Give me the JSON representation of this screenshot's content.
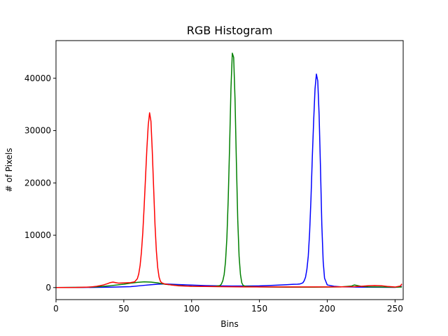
{
  "chart_data": {
    "type": "line",
    "title": "RGB Histogram",
    "xlabel": "Bins",
    "ylabel": "# of Pixels",
    "xlim": [
      0,
      256
    ],
    "ylim": [
      -2300,
      47200
    ],
    "xticks": [
      0,
      50,
      100,
      150,
      200,
      250
    ],
    "yticks": [
      0,
      10000,
      20000,
      30000,
      40000
    ],
    "grid": false,
    "legend": "none",
    "series": [
      {
        "color": "#0000ff",
        "x": [
          0,
          20,
          40,
          55,
          62,
          66,
          70,
          75,
          80,
          90,
          100,
          110,
          120,
          130,
          140,
          150,
          160,
          170,
          175,
          178,
          180,
          182,
          183,
          184,
          185,
          186,
          187,
          188,
          189,
          190,
          191,
          192,
          193,
          194,
          195,
          196,
          197,
          198,
          200,
          205,
          210,
          220,
          230,
          240,
          250,
          255
        ],
        "y": [
          0,
          20,
          80,
          180,
          350,
          450,
          550,
          650,
          700,
          580,
          470,
          380,
          330,
          300,
          300,
          330,
          420,
          550,
          620,
          650,
          700,
          900,
          1300,
          2000,
          3500,
          6000,
          10500,
          17000,
          25000,
          32000,
          38000,
          40800,
          39500,
          33000,
          23000,
          12000,
          5000,
          1800,
          500,
          250,
          150,
          100,
          80,
          60,
          40,
          200
        ]
      },
      {
        "color": "#008000",
        "x": [
          0,
          20,
          30,
          40,
          50,
          55,
          60,
          65,
          70,
          75,
          80,
          90,
          100,
          110,
          118,
          121,
          122,
          123,
          124,
          125,
          126,
          127,
          128,
          129,
          130,
          131,
          132,
          133,
          134,
          135,
          136,
          137,
          138,
          140,
          150,
          170,
          190,
          210,
          218,
          220,
          222,
          225,
          230,
          240,
          250,
          255
        ],
        "y": [
          0,
          50,
          150,
          350,
          650,
          850,
          1000,
          1100,
          1050,
          900,
          650,
          400,
          250,
          200,
          250,
          400,
          700,
          1300,
          2500,
          5000,
          9500,
          17000,
          27000,
          38000,
          44800,
          44000,
          36000,
          24000,
          13000,
          6000,
          2500,
          900,
          400,
          200,
          120,
          80,
          80,
          120,
          300,
          500,
          400,
          250,
          150,
          100,
          80,
          100
        ]
      },
      {
        "color": "#ff0000",
        "x": [
          0,
          15,
          25,
          30,
          35,
          38,
          40,
          42,
          44,
          46,
          50,
          55,
          58,
          60,
          61,
          62,
          63,
          64,
          65,
          66,
          67,
          68,
          69,
          70,
          71,
          72,
          73,
          74,
          75,
          76,
          77,
          78,
          80,
          85,
          90,
          100,
          120,
          140,
          160,
          180,
          200,
          210,
          220,
          225,
          230,
          235,
          240,
          245,
          250,
          254,
          255
        ],
        "y": [
          0,
          20,
          100,
          250,
          500,
          750,
          950,
          1050,
          950,
          850,
          900,
          950,
          1100,
          1700,
          2600,
          4200,
          6800,
          10500,
          15500,
          21000,
          26500,
          31000,
          33400,
          31800,
          26000,
          19000,
          12000,
          7000,
          3800,
          2000,
          1200,
          900,
          700,
          500,
          350,
          250,
          180,
          130,
          120,
          120,
          130,
          150,
          180,
          250,
          350,
          400,
          350,
          200,
          100,
          300,
          700
        ]
      }
    ]
  }
}
